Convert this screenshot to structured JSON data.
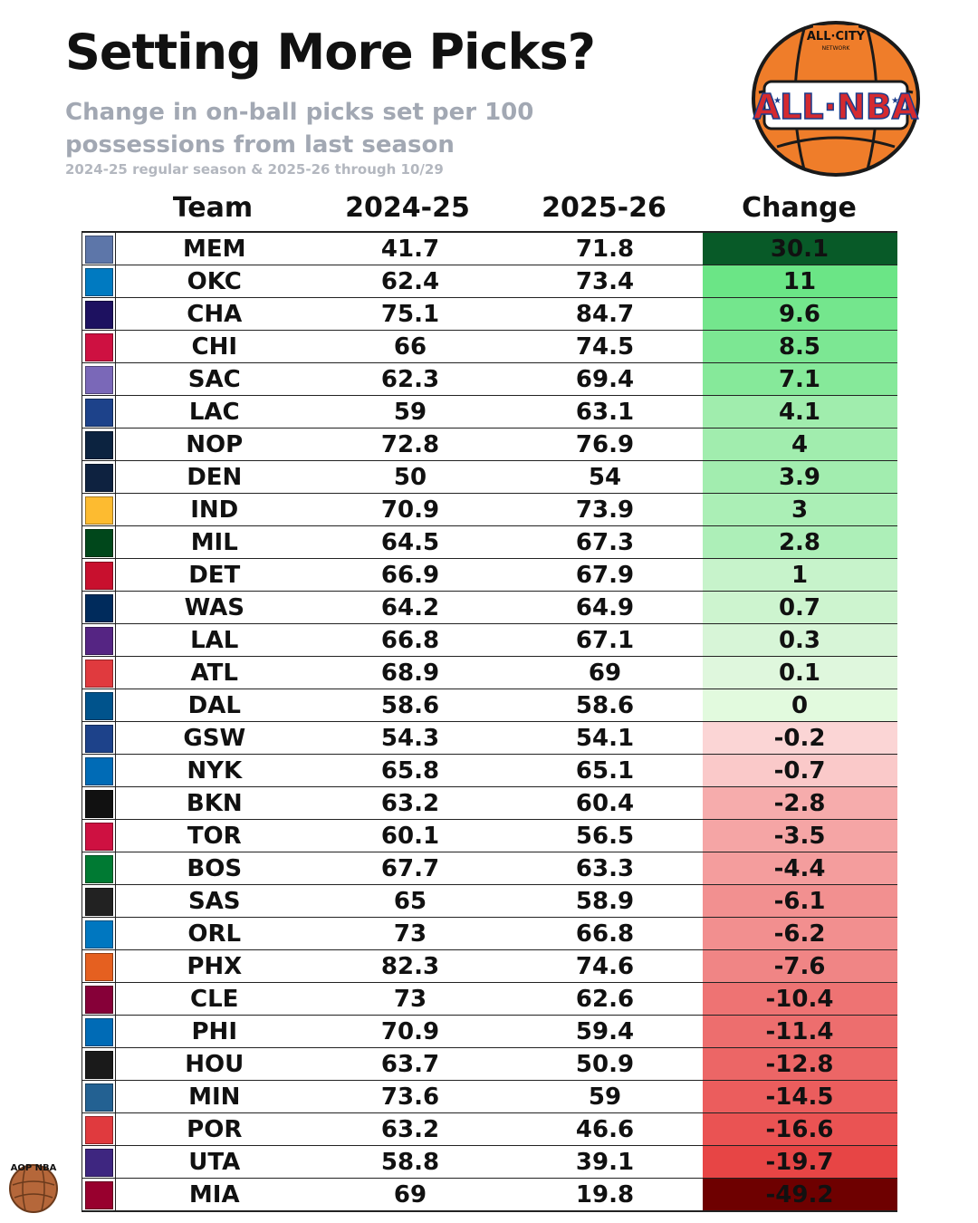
{
  "header": {
    "title": "Setting More Picks?",
    "subtitle": "Change in on-ball picks set per 100 possessions from last season",
    "note": "2024-25 regular season & 2025-26 through 10/29"
  },
  "brand": {
    "logo_top": "ALL·CITY",
    "logo_mid": "NETWORK",
    "logo_main": "ALL·NBA",
    "badge_text": "AOP NBA"
  },
  "chart_data": {
    "type": "table",
    "columns": [
      "Team",
      "2024-25",
      "2025-26",
      "Change"
    ],
    "rows": [
      {
        "team": "MEM",
        "y2425": "41.7",
        "y2526": "71.8",
        "change": "30.1",
        "value": 30.1,
        "logo_color": "#5d76a9"
      },
      {
        "team": "OKC",
        "y2425": "62.4",
        "y2526": "73.4",
        "change": "11",
        "value": 11,
        "logo_color": "#007ac1"
      },
      {
        "team": "CHA",
        "y2425": "75.1",
        "y2526": "84.7",
        "change": "9.6",
        "value": 9.6,
        "logo_color": "#1d1160"
      },
      {
        "team": "CHI",
        "y2425": "66",
        "y2526": "74.5",
        "change": "8.5",
        "value": 8.5,
        "logo_color": "#ce1141"
      },
      {
        "team": "SAC",
        "y2425": "62.3",
        "y2526": "69.4",
        "change": "7.1",
        "value": 7.1,
        "logo_color": "#7a68b8"
      },
      {
        "team": "LAC",
        "y2425": "59",
        "y2526": "63.1",
        "change": "4.1",
        "value": 4.1,
        "logo_color": "#1d428a"
      },
      {
        "team": "NOP",
        "y2425": "72.8",
        "y2526": "76.9",
        "change": "4",
        "value": 4,
        "logo_color": "#0c2340"
      },
      {
        "team": "DEN",
        "y2425": "50",
        "y2526": "54",
        "change": "3.9",
        "value": 3.9,
        "logo_color": "#0e2240"
      },
      {
        "team": "IND",
        "y2425": "70.9",
        "y2526": "73.9",
        "change": "3",
        "value": 3,
        "logo_color": "#fdbb30"
      },
      {
        "team": "MIL",
        "y2425": "64.5",
        "y2526": "67.3",
        "change": "2.8",
        "value": 2.8,
        "logo_color": "#00471b"
      },
      {
        "team": "DET",
        "y2425": "66.9",
        "y2526": "67.9",
        "change": "1",
        "value": 1,
        "logo_color": "#c8102e"
      },
      {
        "team": "WAS",
        "y2425": "64.2",
        "y2526": "64.9",
        "change": "0.7",
        "value": 0.7,
        "logo_color": "#002b5c"
      },
      {
        "team": "LAL",
        "y2425": "66.8",
        "y2526": "67.1",
        "change": "0.3",
        "value": 0.3,
        "logo_color": "#552583"
      },
      {
        "team": "ATL",
        "y2425": "68.9",
        "y2526": "69",
        "change": "0.1",
        "value": 0.1,
        "logo_color": "#e03a3e"
      },
      {
        "team": "DAL",
        "y2425": "58.6",
        "y2526": "58.6",
        "change": "0",
        "value": 0,
        "logo_color": "#00538c"
      },
      {
        "team": "GSW",
        "y2425": "54.3",
        "y2526": "54.1",
        "change": "-0.2",
        "value": -0.2,
        "logo_color": "#1d428a"
      },
      {
        "team": "NYK",
        "y2425": "65.8",
        "y2526": "65.1",
        "change": "-0.7",
        "value": -0.7,
        "logo_color": "#006bb6"
      },
      {
        "team": "BKN",
        "y2425": "63.2",
        "y2526": "60.4",
        "change": "-2.8",
        "value": -2.8,
        "logo_color": "#111111"
      },
      {
        "team": "TOR",
        "y2425": "60.1",
        "y2526": "56.5",
        "change": "-3.5",
        "value": -3.5,
        "logo_color": "#ce1141"
      },
      {
        "team": "BOS",
        "y2425": "67.7",
        "y2526": "63.3",
        "change": "-4.4",
        "value": -4.4,
        "logo_color": "#007a33"
      },
      {
        "team": "SAS",
        "y2425": "65",
        "y2526": "58.9",
        "change": "-6.1",
        "value": -6.1,
        "logo_color": "#222222"
      },
      {
        "team": "ORL",
        "y2425": "73",
        "y2526": "66.8",
        "change": "-6.2",
        "value": -6.2,
        "logo_color": "#0077c0"
      },
      {
        "team": "PHX",
        "y2425": "82.3",
        "y2526": "74.6",
        "change": "-7.6",
        "value": -7.6,
        "logo_color": "#e56020"
      },
      {
        "team": "CLE",
        "y2425": "73",
        "y2526": "62.6",
        "change": "-10.4",
        "value": -10.4,
        "logo_color": "#860038"
      },
      {
        "team": "PHI",
        "y2425": "70.9",
        "y2526": "59.4",
        "change": "-11.4",
        "value": -11.4,
        "logo_color": "#006bb6"
      },
      {
        "team": "HOU",
        "y2425": "63.7",
        "y2526": "50.9",
        "change": "-12.8",
        "value": -12.8,
        "logo_color": "#1a1a1a"
      },
      {
        "team": "MIN",
        "y2425": "73.6",
        "y2526": "59",
        "change": "-14.5",
        "value": -14.5,
        "logo_color": "#236192"
      },
      {
        "team": "POR",
        "y2425": "63.2",
        "y2526": "46.6",
        "change": "-16.6",
        "value": -16.6,
        "logo_color": "#e03a3e"
      },
      {
        "team": "UTA",
        "y2425": "58.8",
        "y2526": "39.1",
        "change": "-19.7",
        "value": -19.7,
        "logo_color": "#3e2680"
      },
      {
        "team": "MIA",
        "y2425": "69",
        "y2526": "19.8",
        "change": "-49.2",
        "value": -49.2,
        "logo_color": "#98002e"
      }
    ]
  }
}
